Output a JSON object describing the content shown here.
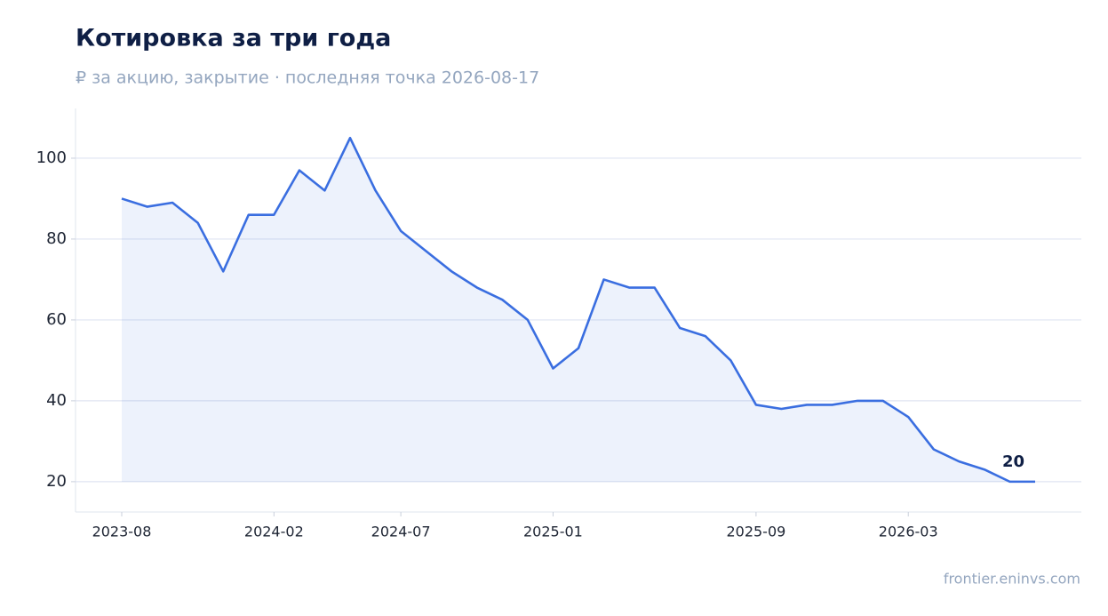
{
  "chart_data": {
    "type": "line",
    "title": "Котировка за три года",
    "subtitle": "₽ за акцию, закрытие · последняя точка 2026-08-17",
    "source": "frontier.eninvs.com",
    "x": [
      "2023-08",
      "2023-09",
      "2023-10",
      "2023-11",
      "2023-12",
      "2024-01",
      "2024-02",
      "2024-03",
      "2024-04",
      "2024-05",
      "2024-06",
      "2024-07",
      "2024-08",
      "2024-09",
      "2024-10",
      "2024-11",
      "2024-12",
      "2025-01",
      "2025-02",
      "2025-03",
      "2025-04",
      "2025-05",
      "2025-06",
      "2025-07",
      "2025-08",
      "2025-09",
      "2025-10",
      "2025-11",
      "2025-12",
      "2026-01",
      "2026-02",
      "2026-03",
      "2026-04",
      "2026-05",
      "2026-06",
      "2026-07",
      "2026-08"
    ],
    "values": [
      90,
      88,
      89,
      84,
      72,
      86,
      86,
      97,
      92,
      105,
      92,
      82,
      77,
      72,
      68,
      65,
      60,
      48,
      53,
      70,
      68,
      68,
      58,
      56,
      50,
      39,
      38,
      39,
      39,
      40,
      40,
      36,
      28,
      25,
      23,
      20,
      20
    ],
    "color": "#3a6ee0",
    "ylim": [
      12.5,
      112.3
    ],
    "yticks": [
      20,
      40,
      60,
      80,
      100
    ],
    "xticks": [
      "2023-08",
      "2024-02",
      "2024-07",
      "2025-01",
      "2025-09",
      "2026-03"
    ],
    "grid": true
  }
}
